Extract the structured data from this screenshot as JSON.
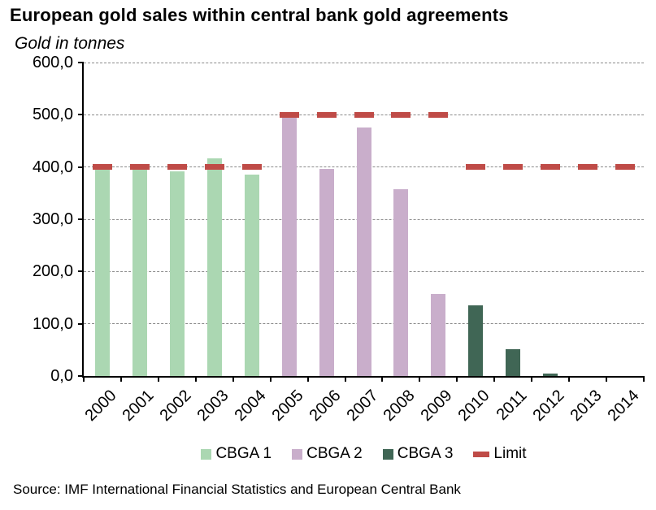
{
  "header": {
    "title": "European gold sales within central bank gold agreements",
    "subtitle": "Gold in tonnes"
  },
  "chart_data": {
    "type": "bar",
    "title": "European gold sales within central bank gold agreements",
    "ylabel": "Gold in tonnes",
    "ylim": [
      0,
      600
    ],
    "ytick_interval": 100,
    "ytick_labels": [
      "0,0",
      "100,0",
      "200,0",
      "300,0",
      "400,0",
      "500,0",
      "600,0"
    ],
    "grid": true,
    "legend_position": "bottom",
    "categories": [
      "2000",
      "2001",
      "2002",
      "2003",
      "2004",
      "2005",
      "2006",
      "2007",
      "2008",
      "2009",
      "2010",
      "2011",
      "2012",
      "2013",
      "2014"
    ],
    "series": [
      {
        "name": "CBGA 1",
        "type": "bar",
        "color": "#abd7b2",
        "values": [
          396,
          396,
          392,
          417,
          385,
          0,
          0,
          0,
          0,
          0,
          0,
          0,
          0,
          0,
          0
        ]
      },
      {
        "name": "CBGA 2",
        "type": "bar",
        "color": "#c9aecb",
        "values": [
          0,
          0,
          0,
          0,
          0,
          497,
          396,
          476,
          357,
          157,
          0,
          0,
          0,
          0,
          0
        ]
      },
      {
        "name": "CBGA 3",
        "type": "bar",
        "color": "#406655",
        "values": [
          0,
          0,
          0,
          0,
          0,
          0,
          0,
          0,
          0,
          0,
          135,
          52,
          5,
          0,
          0
        ]
      },
      {
        "name": "Limit",
        "type": "dash",
        "color": "#bf4b47",
        "values": [
          400,
          400,
          400,
          400,
          400,
          500,
          500,
          500,
          500,
          500,
          400,
          400,
          400,
          400,
          400
        ]
      }
    ],
    "axis_color": "#000000",
    "gridline_color": "#8a8a8a"
  },
  "footer": {
    "source": "Source: IMF International Financial Statistics and European Central Bank"
  }
}
